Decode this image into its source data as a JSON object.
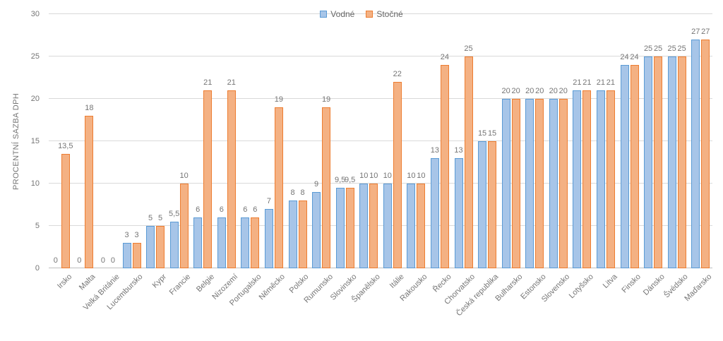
{
  "chart_data": {
    "type": "bar",
    "title": "",
    "xlabel": "",
    "ylabel": "PROCENTNÍ SAZBA DPH",
    "ylim": [
      0,
      30
    ],
    "yticks": [
      0,
      5,
      10,
      15,
      20,
      25,
      30
    ],
    "grid": true,
    "legend_position": "top-center",
    "decimal_separator": ",",
    "categories": [
      "Irsko",
      "Malta",
      "Velká Británie",
      "Lucembursko",
      "Kypr",
      "Francie",
      "Belgie",
      "Nizozemí",
      "Portugalsko",
      "Něměcko",
      "Polsko",
      "Rumunsko",
      "Slovinsko",
      "Španělsko",
      "Itálie",
      "Rakousko",
      "Řecko",
      "Chorvatsko",
      "Česká republika",
      "Bulharsko",
      "Estonsko",
      "Slovensko",
      "Lotyšsko",
      "Litva",
      "Finsko",
      "Dánsko",
      "Švédsko",
      "Maďarsko"
    ],
    "series": [
      {
        "name": "Vodné",
        "fill": "#A7C5E8",
        "border": "#5B9BD5",
        "values": [
          0,
          0,
          0,
          3,
          5,
          5.5,
          6,
          6,
          6,
          7,
          8,
          9,
          9.5,
          10,
          10,
          10,
          13,
          13,
          15,
          20,
          20,
          20,
          21,
          21,
          24,
          25,
          25,
          27
        ]
      },
      {
        "name": "Stočné",
        "fill": "#F4B183",
        "border": "#ED7D31",
        "values": [
          13.5,
          18,
          0,
          3,
          5,
          10,
          21,
          21,
          6,
          19,
          8,
          19,
          9.5,
          10,
          22,
          10,
          24,
          25,
          15,
          20,
          20,
          20,
          21,
          21,
          24,
          25,
          25,
          27
        ]
      }
    ]
  },
  "colors": {
    "gridline": "#D9D9D9",
    "axis_line": "#BFBFBF",
    "label_text": "#757575",
    "background": "#FFFFFF"
  }
}
